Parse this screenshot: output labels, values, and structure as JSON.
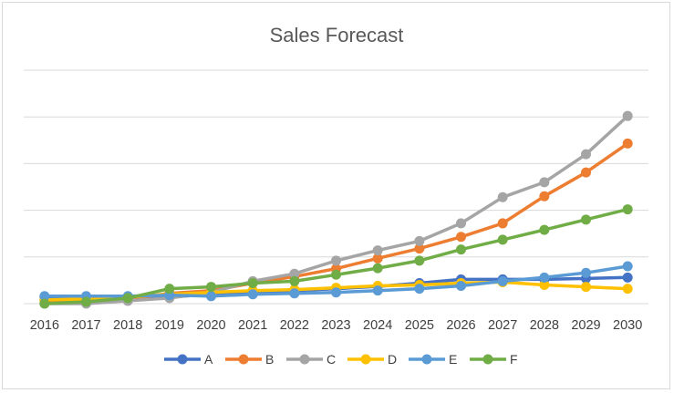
{
  "chart_data": {
    "type": "line",
    "title": "Sales Forecast",
    "xlabel": "",
    "ylabel": "",
    "x": [
      "2016",
      "2017",
      "2018",
      "2019",
      "2020",
      "2021",
      "2022",
      "2023",
      "2024",
      "2025",
      "2026",
      "2027",
      "2028",
      "2029",
      "2030"
    ],
    "ylim": [
      0,
      5
    ],
    "y_tick_labels_visible": false,
    "grid": "horizontal",
    "legend": "bottom",
    "series": [
      {
        "name": "A",
        "color": "#4472C4",
        "values": [
          0.14,
          0.14,
          0.14,
          0.14,
          0.2,
          0.24,
          0.28,
          0.32,
          0.37,
          0.44,
          0.52,
          0.52,
          0.52,
          0.54,
          0.56
        ]
      },
      {
        "name": "B",
        "color": "#ED7D31",
        "values": [
          0.06,
          0.04,
          0.1,
          0.22,
          0.28,
          0.44,
          0.58,
          0.75,
          0.97,
          1.18,
          1.43,
          1.72,
          2.3,
          2.81,
          3.43
        ]
      },
      {
        "name": "C",
        "color": "#A5A5A5",
        "values": [
          0.0,
          0.0,
          0.06,
          0.12,
          0.24,
          0.48,
          0.64,
          0.92,
          1.14,
          1.34,
          1.72,
          2.28,
          2.6,
          3.2,
          4.02
        ]
      },
      {
        "name": "D",
        "color": "#FFC000",
        "values": [
          0.08,
          0.1,
          0.14,
          0.2,
          0.24,
          0.28,
          0.3,
          0.34,
          0.38,
          0.4,
          0.44,
          0.46,
          0.4,
          0.36,
          0.32
        ]
      },
      {
        "name": "E",
        "color": "#5B9BD5",
        "values": [
          0.16,
          0.16,
          0.16,
          0.18,
          0.16,
          0.2,
          0.22,
          0.24,
          0.28,
          0.32,
          0.38,
          0.48,
          0.56,
          0.66,
          0.8
        ]
      },
      {
        "name": "F",
        "color": "#70AD47",
        "values": [
          0.0,
          0.04,
          0.12,
          0.32,
          0.36,
          0.44,
          0.48,
          0.62,
          0.76,
          0.92,
          1.16,
          1.37,
          1.58,
          1.8,
          2.02
        ]
      }
    ]
  }
}
